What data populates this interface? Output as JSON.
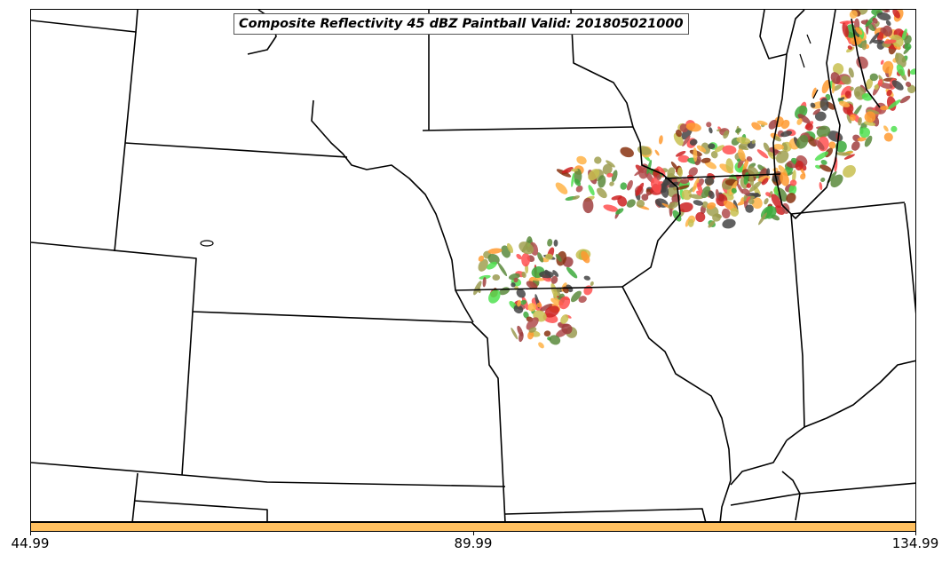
{
  "title": "Composite Reflectivity 45 dBZ Paintball Valid: 201805021000",
  "colorbar": {
    "color": "#ffc060",
    "ticks": [
      "44.99",
      "89.99",
      "134.99"
    ]
  },
  "paintball_colors": [
    "#cc2222",
    "#ff5050",
    "#ff9a30",
    "#ffb347",
    "#c8c050",
    "#a0a050",
    "#9a9a50",
    "#a04040",
    "#b04b4b",
    "#50e050",
    "#3caa3c",
    "#5a8a3c",
    "#444444",
    "#883311"
  ]
}
